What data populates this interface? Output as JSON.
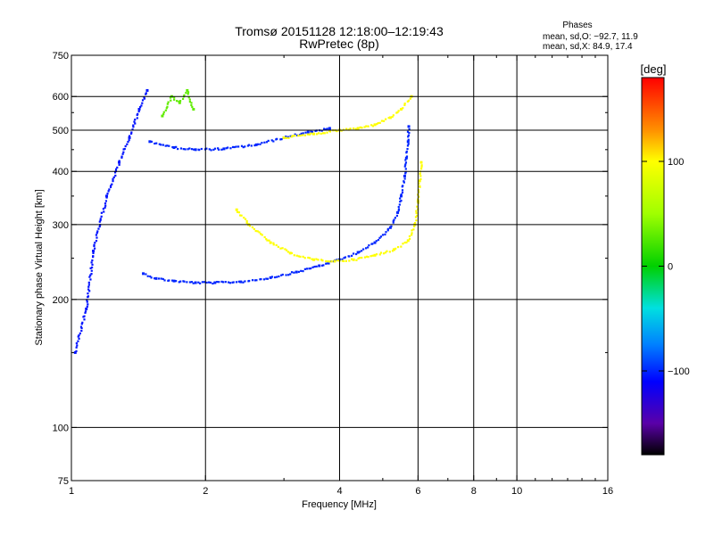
{
  "header": {
    "title_line1": "Tromsø 20151128 12:18:00–12:19:43",
    "title_line2": "RwPretec (8p)"
  },
  "phases_box": {
    "heading": "Phases",
    "line_o": "mean, sd,O: −92.7, 11.9",
    "line_x": "mean, sd,X:  84.9, 17.4"
  },
  "colorbar": {
    "label": "[deg]",
    "ticks": [
      "100",
      "0",
      "−100"
    ],
    "tick_values": [
      100,
      0,
      -100
    ],
    "range": [
      -180,
      180
    ],
    "stops": [
      {
        "v": -180,
        "c": "#000000"
      },
      {
        "v": -150,
        "c": "#5a00a8"
      },
      {
        "v": -110,
        "c": "#0000ff"
      },
      {
        "v": -75,
        "c": "#0080ff"
      },
      {
        "v": -40,
        "c": "#00e0e0"
      },
      {
        "v": 0,
        "c": "#00d000"
      },
      {
        "v": 50,
        "c": "#a0ff00"
      },
      {
        "v": 100,
        "c": "#ffff00"
      },
      {
        "v": 130,
        "c": "#ff9000"
      },
      {
        "v": 180,
        "c": "#ff0000"
      }
    ]
  },
  "chart_data": {
    "type": "scatter",
    "xlabel": "Frequency [MHz]",
    "ylabel": "Stationary phase Virtual Height [km]",
    "xscale": "log",
    "yscale": "log",
    "xlim": [
      1,
      16
    ],
    "ylim": [
      75,
      750
    ],
    "x_ticks": [
      1,
      2,
      4,
      6,
      8,
      10,
      16
    ],
    "x_tick_labels": [
      "1",
      "2",
      "4",
      "6",
      "8",
      "10",
      "16"
    ],
    "y_ticks": [
      75,
      100,
      200,
      300,
      400,
      500,
      600,
      750
    ],
    "y_tick_labels": [
      "75",
      "100",
      "200",
      "300",
      "400",
      "500",
      "600",
      "750"
    ],
    "grid": true,
    "series": [
      {
        "key": "o_f_layer",
        "phase": -100,
        "x": [
          1.45,
          1.55,
          1.7,
          1.9,
          2.1,
          2.4,
          2.8,
          3.2,
          3.6,
          4.0,
          4.4,
          4.8,
          5.2,
          5.4,
          5.5,
          5.6,
          5.65,
          5.7,
          5.72
        ],
        "y": [
          230,
          224,
          221,
          219,
          219,
          220,
          225,
          232,
          240,
          248,
          258,
          272,
          295,
          320,
          350,
          390,
          430,
          470,
          510
        ]
      },
      {
        "key": "o_upper_trace",
        "phase": -100,
        "x": [
          1.5,
          1.7,
          1.9,
          2.2,
          2.6,
          3.0,
          3.4,
          3.8
        ],
        "y": [
          470,
          455,
          450,
          452,
          462,
          480,
          495,
          505
        ]
      },
      {
        "key": "x_f_layer",
        "phase": 100,
        "x": [
          2.35,
          2.5,
          2.8,
          3.1,
          3.5,
          3.9,
          4.3,
          4.8,
          5.3,
          5.7,
          5.9,
          6.0,
          6.05,
          6.1
        ],
        "y": [
          325,
          300,
          272,
          257,
          248,
          246,
          248,
          254,
          262,
          275,
          300,
          340,
          380,
          420
        ]
      },
      {
        "key": "x_upper_trace",
        "phase": 100,
        "x": [
          3.0,
          3.5,
          4.0,
          4.4,
          4.8,
          5.2,
          5.5,
          5.8
        ],
        "y": [
          480,
          490,
          500,
          505,
          515,
          535,
          560,
          600
        ]
      },
      {
        "key": "sporadic_cluster",
        "phase": -105,
        "x": [
          1.02,
          1.08,
          1.12,
          1.2,
          1.28,
          1.35,
          1.42,
          1.48
        ],
        "y": [
          150,
          190,
          260,
          350,
          420,
          480,
          560,
          620
        ]
      },
      {
        "key": "green_patch",
        "phase": 30,
        "x": [
          1.6,
          1.68,
          1.75,
          1.82,
          1.88
        ],
        "y": [
          540,
          600,
          580,
          620,
          560
        ]
      }
    ]
  }
}
